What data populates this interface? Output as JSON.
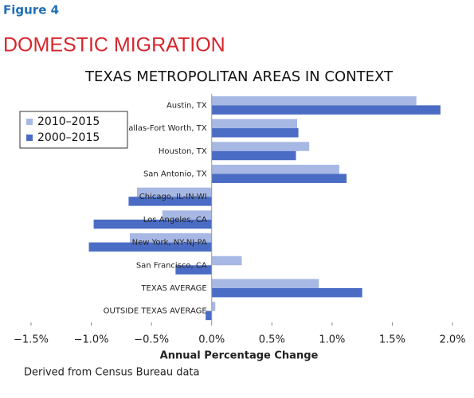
{
  "figure_label": "Figure 4",
  "heading": "DOMESTIC MIGRATION",
  "source": "Derived from Census Bureau data",
  "chart_data": {
    "type": "hbar",
    "title": "TEXAS METROPOLITAN AREAS IN CONTEXT",
    "x_label": "Annual Percentage Change",
    "categories": [
      "Austin, TX",
      "Dallas-Fort Worth, TX",
      "Houston, TX",
      "San Antonio, TX",
      "Chicago, IL-IN-WI",
      "Los Angeles, CA",
      "New York, NY-NJ-PA",
      "San Francisco, CA",
      "TEXAS AVERAGE",
      "OUTSIDE TEXAS AVERAGE"
    ],
    "series": [
      {
        "name": "2010–2015",
        "color": "#a7b8e4",
        "values": [
          1.7,
          0.71,
          0.81,
          1.06,
          -0.62,
          -0.41,
          -0.68,
          0.25,
          0.89,
          0.03
        ]
      },
      {
        "name": "2000–2015",
        "color": "#4a6cc4",
        "values": [
          1.9,
          0.72,
          0.7,
          1.12,
          -0.69,
          -0.98,
          -1.02,
          -0.3,
          1.25,
          -0.05
        ]
      }
    ],
    "xlim": [
      -1.5,
      2.0
    ],
    "xticks": [
      {
        "value": -1.5,
        "label": "−1.5%"
      },
      {
        "value": -1.0,
        "label": "−1.0%"
      },
      {
        "value": -0.5,
        "label": "−0.5%"
      },
      {
        "value": 0,
        "label": "0.0%"
      },
      {
        "value": 0.5,
        "label": "0.5%"
      },
      {
        "value": 1.0,
        "label": "1.0%"
      },
      {
        "value": 1.5,
        "label": "1.5%"
      },
      {
        "value": 2.0,
        "label": "2.0%"
      }
    ],
    "legend": "upper left"
  }
}
